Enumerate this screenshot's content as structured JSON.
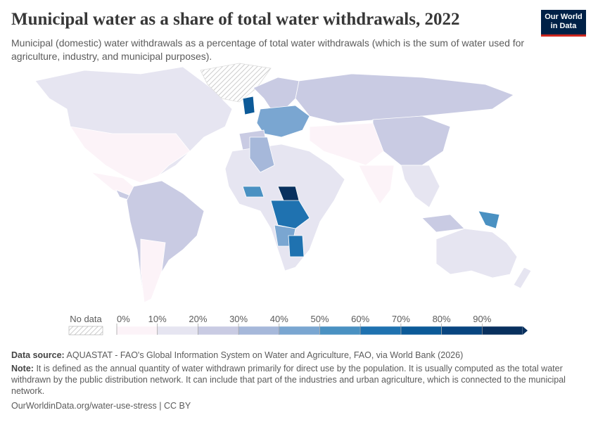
{
  "header": {
    "title": "Municipal water as a share of total water withdrawals, 2022",
    "subtitle": "Municipal (domestic) water withdrawals as a percentage of total water withdrawals (which is the sum of water used for agriculture, industry, and municipal purposes).",
    "logo": [
      "Our World",
      "in Data"
    ]
  },
  "legend": {
    "no_data": "No data",
    "ticks": [
      {
        "value": 0,
        "label": "0%"
      },
      {
        "value": 10,
        "label": "10%"
      },
      {
        "value": 20,
        "label": "20%"
      },
      {
        "value": 30,
        "label": "30%"
      },
      {
        "value": 40,
        "label": "40%"
      },
      {
        "value": 50,
        "label": "50%"
      },
      {
        "value": 60,
        "label": "60%"
      },
      {
        "value": 70,
        "label": "70%"
      },
      {
        "value": 80,
        "label": "80%"
      },
      {
        "value": 90,
        "label": "90%"
      }
    ],
    "range": [
      0,
      100
    ],
    "colors": [
      "#fcf3f8",
      "#e6e5f1",
      "#c9cbe3",
      "#a6b8da",
      "#7aa6d1",
      "#4a91c2",
      "#1f72b0",
      "#0c5a98",
      "#084580",
      "#08305e"
    ]
  },
  "footer": {
    "source_label": "Data source:",
    "source": "AQUASTAT - FAO's Global Information System on Water and Agriculture, FAO, via World Bank (2026)",
    "note_label": "Note:",
    "note": "It is defined as the annual quantity of water withdrawn primarily for direct use by the population. It is usually computed as the total water withdrawn by the public distribution network. It can include that part of the industries and urban agriculture, which is connected to the municipal network.",
    "url": "OurWorldinData.org/water-use-stress | CC BY"
  }
}
